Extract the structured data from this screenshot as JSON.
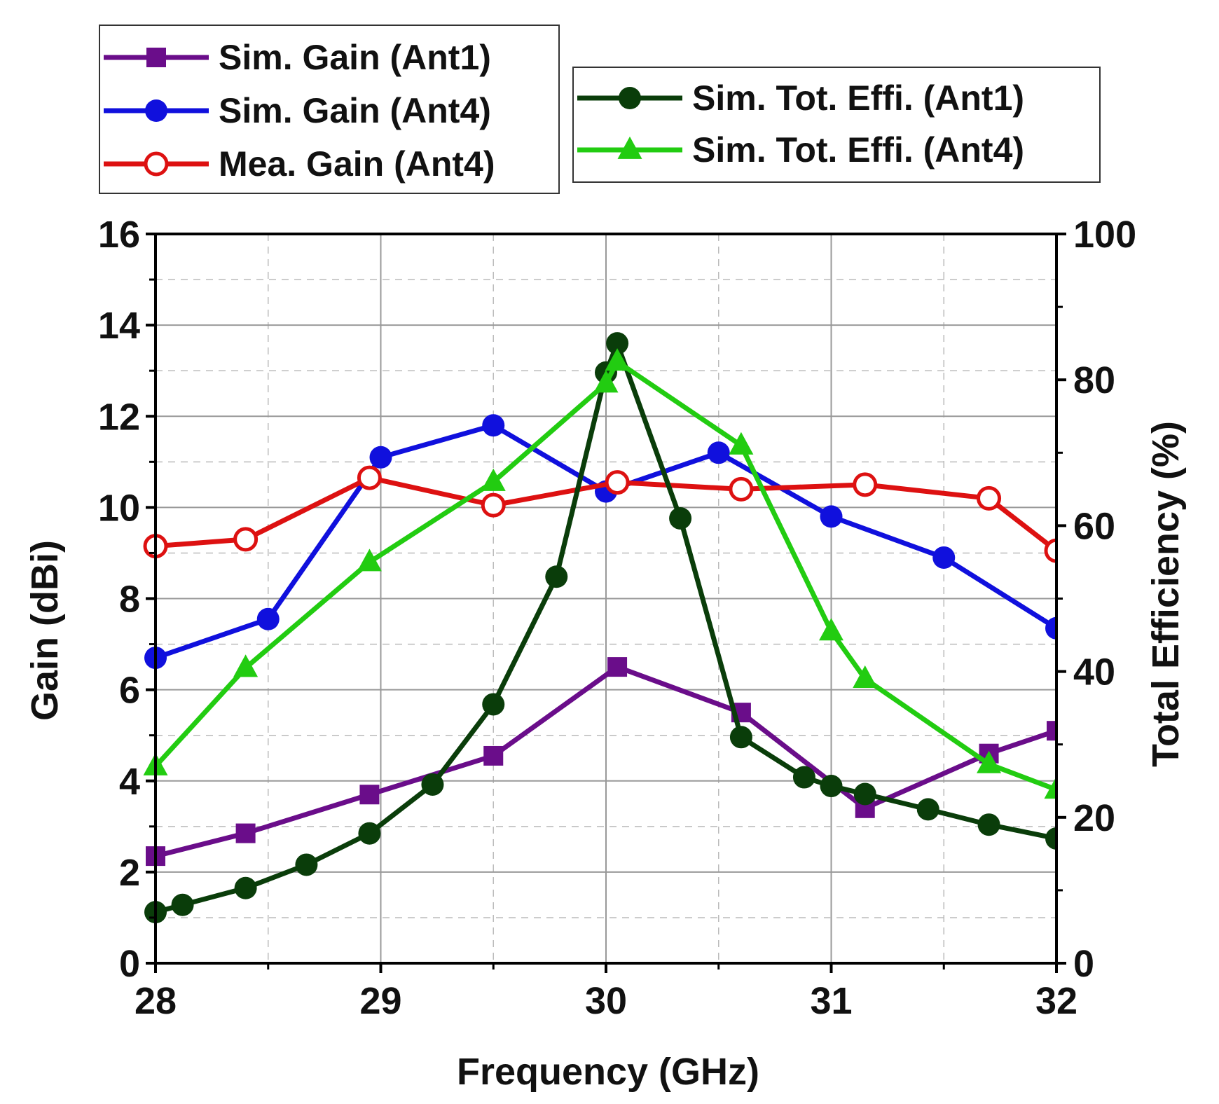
{
  "chart_data": {
    "type": "line",
    "xlabel": "Frequency (GHz)",
    "ylabel_left": "Gain (dBi)",
    "ylabel_right": "Total Efficiency (%)",
    "xlim": [
      28,
      32
    ],
    "ylim_left": [
      0,
      16
    ],
    "ylim_right": [
      0,
      100
    ],
    "x_ticks": [
      28,
      29,
      30,
      31,
      32
    ],
    "y_left_ticks": [
      0,
      2,
      4,
      6,
      8,
      10,
      12,
      14,
      16
    ],
    "y_right_ticks": [
      0,
      20,
      40,
      60,
      80,
      100
    ],
    "grid": true,
    "legend_groups": [
      {
        "position": "top-left",
        "series": [
          "Sim. Gain (Ant1)",
          "Sim. Gain (Ant4)",
          "Mea. Gain (Ant4)"
        ]
      },
      {
        "position": "top-right",
        "series": [
          "Sim. Tot. Effi. (Ant1)",
          "Sim. Tot. Effi. (Ant4)"
        ]
      }
    ],
    "series": [
      {
        "name": "Sim. Gain (Ant1)",
        "axis": "left",
        "color": "#6a0d8a",
        "marker": "square",
        "x": [
          28.0,
          28.4,
          28.95,
          29.5,
          30.05,
          30.6,
          31.15,
          31.7,
          32.0
        ],
        "y": [
          2.35,
          2.85,
          3.7,
          4.55,
          6.5,
          5.5,
          3.4,
          4.6,
          5.1
        ]
      },
      {
        "name": "Sim. Gain (Ant4)",
        "axis": "left",
        "color": "#1010dd",
        "marker": "circle",
        "x": [
          28.0,
          28.5,
          29.0,
          29.5,
          30.0,
          30.5,
          31.0,
          31.5,
          32.0
        ],
        "y": [
          6.7,
          7.55,
          11.1,
          11.8,
          10.35,
          11.2,
          9.8,
          8.9,
          7.35
        ]
      },
      {
        "name": "Mea. Gain (Ant4)",
        "axis": "left",
        "color": "#dd1111",
        "marker": "open-circle",
        "x": [
          28.0,
          28.4,
          28.95,
          29.5,
          30.05,
          30.6,
          31.15,
          31.7,
          32.0
        ],
        "y": [
          9.15,
          9.3,
          10.65,
          10.05,
          10.55,
          10.4,
          10.5,
          10.2,
          9.05
        ]
      },
      {
        "name": "Sim. Tot. Effi. (Ant1)",
        "axis": "right",
        "color": "#0a3d0a",
        "marker": "circle",
        "x": [
          28.0,
          28.12,
          28.4,
          28.67,
          28.95,
          29.23,
          29.5,
          29.78,
          30.0,
          30.05,
          30.33,
          30.6,
          30.88,
          31.0,
          31.15,
          31.43,
          31.7,
          32.0
        ],
        "y": [
          7,
          8,
          10.3,
          13.5,
          17.8,
          24.5,
          35.5,
          53,
          81,
          85,
          61,
          31,
          25.5,
          24.3,
          23.2,
          21.1,
          19,
          17.1
        ]
      },
      {
        "name": "Sim. Tot. Effi. (Ant4)",
        "axis": "right",
        "color": "#22cc11",
        "marker": "triangle",
        "x": [
          28.0,
          28.4,
          28.95,
          29.5,
          30.0,
          30.05,
          30.6,
          31.0,
          31.15,
          31.7,
          32.0
        ],
        "y": [
          27,
          40.5,
          55,
          66,
          79.5,
          82.5,
          71,
          45.5,
          39,
          27.3,
          23.8
        ]
      }
    ]
  }
}
